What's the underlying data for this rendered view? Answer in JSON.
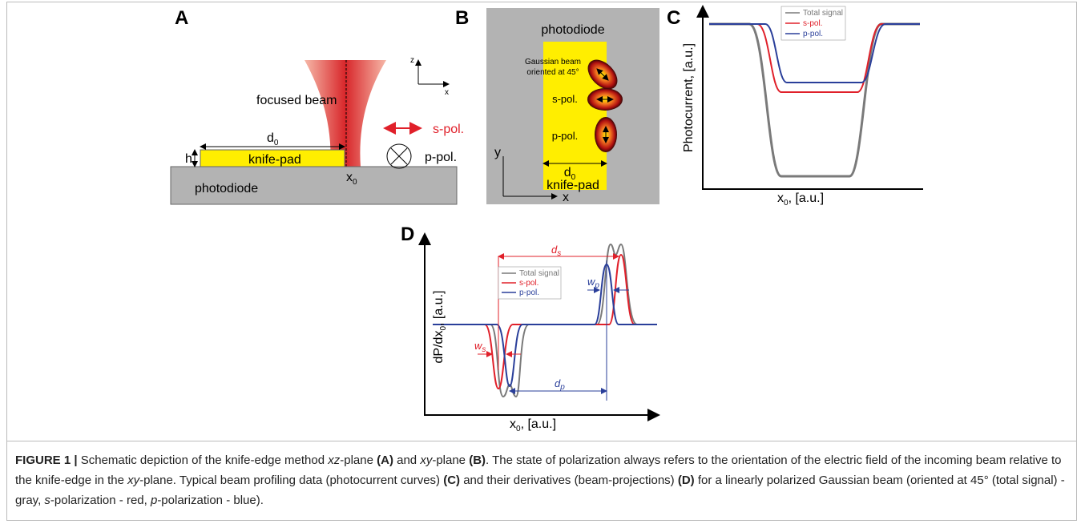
{
  "panel_a": {
    "label": "A",
    "beam": "focused beam",
    "width": {
      "base": "d",
      "sub": "0"
    },
    "height": "h",
    "pad": "knife-pad",
    "position": {
      "base": "x",
      "sub": "0"
    },
    "substrate": "photodiode",
    "s_pol": "s-pol.",
    "p_pol": "p-pol.",
    "axis_z": "z",
    "axis_x": "x"
  },
  "panel_b": {
    "label": "B",
    "substrate": "photodiode",
    "beam_note": [
      "Gaussian beam",
      "oriented at 45°"
    ],
    "s_pol": "s-pol.",
    "p_pol": "p-pol.",
    "axis_y": "y",
    "axis_x": "x",
    "width": {
      "base": "d",
      "sub": "0"
    },
    "pad": "knife-pad"
  },
  "panel_c": {
    "label": "C",
    "legend": [
      "Total signal",
      "s-pol.",
      "p-pol."
    ],
    "y_label": "Photocurrent, [a.u.]",
    "x_label": {
      "base": "x",
      "sub": "0",
      "rest": ", [a.u.]"
    }
  },
  "panel_d": {
    "label": "D",
    "legend": [
      "Total signal",
      "s-pol.",
      "p-pol."
    ],
    "y_label": {
      "pre": "dP/dx",
      "sub": "0",
      "rest": ", [a.u.]"
    },
    "x_label": {
      "base": "x",
      "sub": "0",
      "rest": ", [a.u.]"
    },
    "ds": {
      "base": "d",
      "sub": "s"
    },
    "dp": {
      "base": "d",
      "sub": "p"
    },
    "ws": {
      "base": "w",
      "sub": "s"
    },
    "wp": {
      "base": "w",
      "sub": "p"
    }
  },
  "caption": [
    "FIGURE 1 | ",
    "Schematic depiction of the knife-edge method ",
    "xz",
    "-plane ",
    "(A)",
    " and ",
    "xy",
    "-plane ",
    "(B)",
    ". The state of polarization always refers to the orientation of the electric field of the incoming beam relative to the knife-edge in the ",
    "xy",
    "-plane. Typical beam profiling data (photocurrent curves) ",
    "(C)",
    " and their derivatives (beam-projections) ",
    "(D)",
    " for a linearly polarized Gaussian beam (oriented at 45° (total signal) - gray, ",
    "s",
    "-polarization - red, ",
    "p",
    "-polarization - blue)."
  ]
}
